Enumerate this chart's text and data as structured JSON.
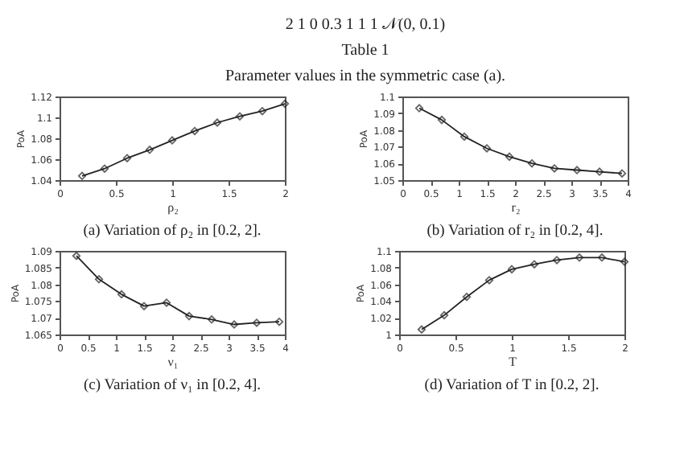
{
  "chart_data": [
    {
      "type": "other",
      "annotations": [
        "2     1     0     0.3     1     1     1     𝒩(0, 0.1)",
        "Table 1",
        "Parameter values in the symmetric case (a)."
      ]
    },
    {
      "type": "line",
      "title": "(a) Variation of ρ₂ in [0.2, 2].",
      "xlabel": "ρ₂",
      "ylabel": "PoA",
      "marker": "diamond",
      "x": [
        0.2,
        0.4,
        0.6,
        0.8,
        1,
        1.2,
        1.4,
        1.6,
        1.8,
        2
      ],
      "series": [
        {
          "color": "#222222",
          "values": [
            1.044,
            1.051,
            1.061,
            1.069,
            1.078,
            1.087,
            1.095,
            1.101,
            1.106,
            1.113
          ]
        }
      ],
      "xlim": [
        0,
        2
      ],
      "xticks": [
        0,
        0.5,
        1,
        1.5,
        2
      ],
      "ylim": [
        1.04,
        1.12
      ],
      "yticks": [
        1.04,
        1.06,
        1.08,
        1.1,
        1.12
      ]
    },
    {
      "type": "line",
      "title": "(b) Variation of r₂ in [0.2, 4].",
      "xlabel": "r₂",
      "ylabel": "PoA",
      "marker": "diamond",
      "x": [
        0.3,
        0.7,
        1.1,
        1.5,
        1.9,
        2.3,
        2.7,
        3.1,
        3.5,
        3.9
      ],
      "series": [
        {
          "color": "#222222",
          "values": [
            1.093,
            1.086,
            1.076,
            1.069,
            1.064,
            1.06,
            1.057,
            1.056,
            1.055,
            1.054
          ]
        }
      ],
      "xlim": [
        0,
        4
      ],
      "xticks": [
        0,
        0.5,
        1,
        1.5,
        2,
        2.5,
        3,
        3.5,
        4
      ],
      "ylim": [
        1.05,
        1.1
      ],
      "yticks": [
        1.05,
        1.06,
        1.07,
        1.08,
        1.09,
        1.1
      ]
    },
    {
      "type": "line",
      "title": "(c) Variation of ν₁ in [0.2, 4].",
      "xlabel": "ν₁",
      "ylabel": "PoA",
      "marker": "diamond",
      "x": [
        0.3,
        0.7,
        1.1,
        1.5,
        1.9,
        2.3,
        2.7,
        3.1,
        3.5,
        3.9
      ],
      "series": [
        {
          "color": "#222222",
          "values": [
            1.0885,
            1.0815,
            1.077,
            1.0735,
            1.0745,
            1.0705,
            1.0695,
            1.068,
            1.0685,
            1.0688
          ]
        }
      ],
      "xlim": [
        0,
        4
      ],
      "xticks": [
        0,
        0.5,
        1,
        1.5,
        2,
        2.5,
        3,
        3.5,
        4
      ],
      "ylim": [
        1.065,
        1.09
      ],
      "yticks": [
        1.065,
        1.07,
        1.075,
        1.08,
        1.085,
        1.09
      ]
    },
    {
      "type": "line",
      "title": "(d) Variation of T in [0.2, 2].",
      "xlabel": "T",
      "ylabel": "PoA",
      "marker": "diamond",
      "x": [
        0.2,
        0.4,
        0.6,
        0.8,
        1,
        1.2,
        1.4,
        1.6,
        1.8,
        2
      ],
      "series": [
        {
          "color": "#222222",
          "values": [
            1.006,
            1.023,
            1.045,
            1.065,
            1.078,
            1.084,
            1.089,
            1.092,
            1.092,
            1.087
          ]
        }
      ],
      "xlim": [
        0,
        2
      ],
      "xticks": [
        0,
        0.5,
        1,
        1.5,
        2
      ],
      "ylim": [
        1,
        1.1
      ],
      "yticks": [
        1,
        1.02,
        1.04,
        1.06,
        1.08,
        1.1
      ]
    }
  ]
}
